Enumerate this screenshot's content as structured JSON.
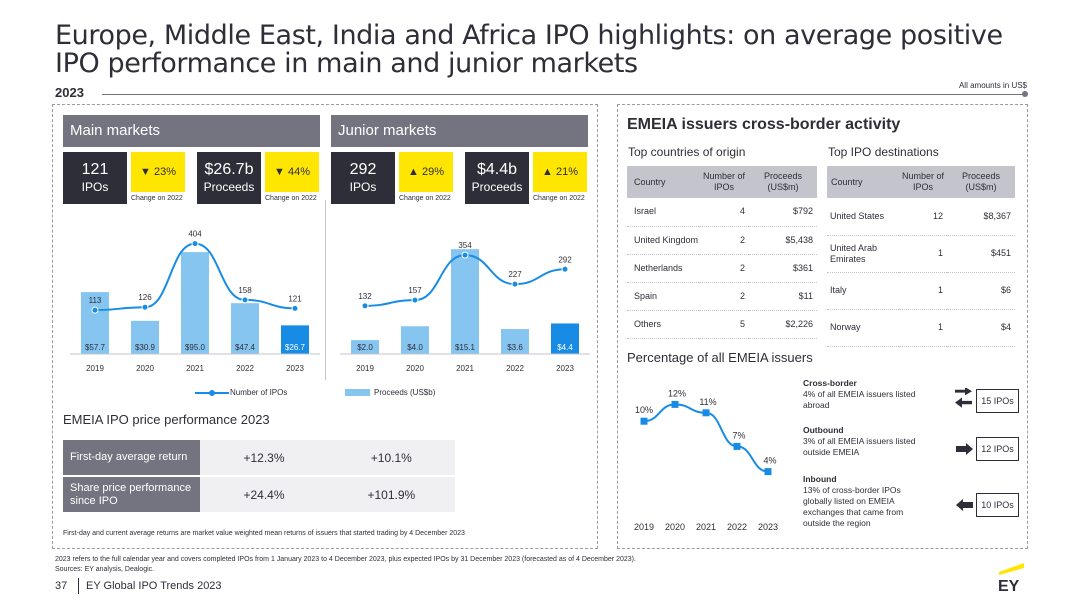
{
  "title": "Europe, Middle East, India and Africa IPO highlights: on average positive IPO performance in main and junior markets",
  "year": "2023",
  "amounts_note": "All amounts in US$",
  "main": {
    "header": "Main markets",
    "ipos_num": "121",
    "ipos_lab": "IPOs",
    "ipos_change": "▼ 23%",
    "proceeds_num": "$26.7b",
    "proceeds_lab": "Proceeds",
    "proceeds_change": "▼ 44%",
    "change_note": "Change on 2022",
    "years": [
      "2019",
      "2020",
      "2021",
      "2022",
      "2023"
    ],
    "ipo_counts": [
      113,
      126,
      404,
      158,
      121
    ],
    "ipo_labels": [
      "113",
      "126",
      "404",
      "158",
      "121"
    ],
    "proceeds": [
      57.7,
      30.9,
      95.0,
      47.4,
      26.7
    ],
    "proceeds_labels": [
      "$57.7",
      "$30.9",
      "$95.0",
      "$47.4",
      "$26.7"
    ]
  },
  "junior": {
    "header": "Junior markets",
    "ipos_num": "292",
    "ipos_lab": "IPOs",
    "ipos_change": "▲ 29%",
    "proceeds_num": "$4.4b",
    "proceeds_lab": "Proceeds",
    "proceeds_change": "▲ 21%",
    "change_note": "Change on 2022",
    "years": [
      "2019",
      "2020",
      "2021",
      "2022",
      "2023"
    ],
    "ipo_counts": [
      132,
      157,
      354,
      227,
      292
    ],
    "ipo_labels": [
      "132",
      "157",
      "354",
      "227",
      "292"
    ],
    "proceeds": [
      2.0,
      4.0,
      15.1,
      3.6,
      4.4
    ],
    "proceeds_labels": [
      "$2.0",
      "$4.0",
      "$15.1",
      "$3.6",
      "$4.4"
    ]
  },
  "legend": {
    "ipos": "Number of IPOs",
    "proceeds": "Proceeds (US$b)"
  },
  "perf": {
    "title": "EMEIA IPO price performance 2023",
    "rows": [
      {
        "label": "First-day average return",
        "main": "+12.3%",
        "junior": "+10.1%"
      },
      {
        "label": "Share price performance since IPO",
        "main": "+24.4%",
        "junior": "+101.9%"
      }
    ],
    "note": "First-day and current average returns are market value weighted mean returns of issuers that started trading by 4 December 2023"
  },
  "cross": {
    "title": "EMEIA issuers cross-border activity",
    "origin_title": "Top countries of origin",
    "dest_title": "Top IPO destinations",
    "headers": [
      "Country",
      "Number of IPOs",
      "Proceeds (US$m)"
    ],
    "origin_rows": [
      [
        "Israel",
        "4",
        "$792"
      ],
      [
        "United Kingdom",
        "2",
        "$5,438"
      ],
      [
        "Netherlands",
        "2",
        "$361"
      ],
      [
        "Spain",
        "2",
        "$11"
      ],
      [
        "Others",
        "5",
        "$2,226"
      ]
    ],
    "dest_rows": [
      [
        "United States",
        "12",
        "$8,367"
      ],
      [
        "United Arab Emirates",
        "1",
        "$451"
      ],
      [
        "Italy",
        "1",
        "$6"
      ],
      [
        "Norway",
        "1",
        "$4"
      ]
    ],
    "pct_title": "Percentage of all EMEIA issuers",
    "pct_years": [
      "2019",
      "2020",
      "2021",
      "2022",
      "2023"
    ],
    "pct_values": [
      10,
      12,
      11,
      7,
      4
    ],
    "pct_labels": [
      "10%",
      "12%",
      "11%",
      "7%",
      "4%"
    ],
    "items": [
      {
        "title": "Cross-border",
        "text": "4% of all EMEIA issuers listed abroad",
        "box": "15 IPOs"
      },
      {
        "title": "Outbound",
        "text": "3% of all EMEIA issuers listed outside EMEIA",
        "box": "12 IPOs"
      },
      {
        "title": "Inbound",
        "text": "13% of cross-border IPOs globally listed on EMEIA exchanges that came from outside the region",
        "box": "10 IPOs"
      }
    ]
  },
  "chart_data": [
    {
      "type": "bar",
      "title": "Main markets",
      "categories": [
        "2019",
        "2020",
        "2021",
        "2022",
        "2023"
      ],
      "series": [
        {
          "name": "Number of IPOs",
          "values": [
            113,
            126,
            404,
            158,
            121
          ]
        },
        {
          "name": "Proceeds (US$b)",
          "values": [
            57.7,
            30.9,
            95.0,
            47.4,
            26.7
          ]
        }
      ]
    },
    {
      "type": "bar",
      "title": "Junior markets",
      "categories": [
        "2019",
        "2020",
        "2021",
        "2022",
        "2023"
      ],
      "series": [
        {
          "name": "Number of IPOs",
          "values": [
            132,
            157,
            354,
            227,
            292
          ]
        },
        {
          "name": "Proceeds (US$b)",
          "values": [
            2.0,
            4.0,
            15.1,
            3.6,
            4.4
          ]
        }
      ]
    },
    {
      "type": "line",
      "title": "Percentage of all EMEIA issuers",
      "x": [
        "2019",
        "2020",
        "2021",
        "2022",
        "2023"
      ],
      "values": [
        10,
        12,
        11,
        7,
        4
      ]
    }
  ],
  "footnotes": {
    "line1": "2023 refers to the full calendar year and covers completed IPOs from 1 January 2023 to 4 December 2023, plus expected IPOs by 31 December 2023 (forecasted as of 4 December 2023).",
    "line2": "Sources: EY analysis, Dealogic."
  },
  "page": {
    "num": "37",
    "src": "EY Global IPO Trends 2023",
    "logo": "EY"
  },
  "colors": {
    "dark": "#2e2e38",
    "grey": "#747480",
    "yellow": "#ffe600",
    "bar_light": "#85c5f0",
    "bar_dark": "#188ce5",
    "line": "#188ce5"
  }
}
